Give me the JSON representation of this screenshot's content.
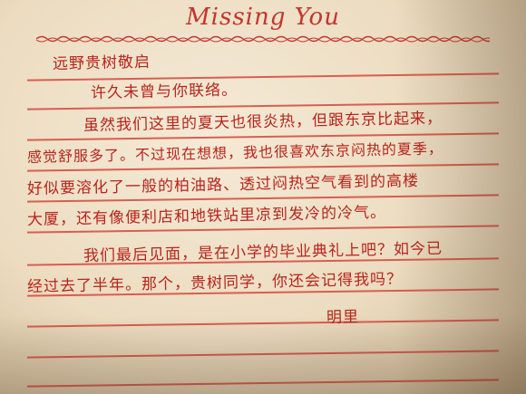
{
  "header": {
    "title": "Missing You"
  },
  "letter": {
    "salutation": "远野贵树敬启",
    "lines": [
      "许久未曾与你联络。",
      "虽然我们这里的夏天也很炎热，但跟东京比起来，",
      "感觉舒服多了。不过现在想想，我也很喜欢东京闷热的夏季，",
      "好似要溶化了一般的柏油路、透过闷热空气看到的高楼",
      "大厦，还有像便利店和地铁站里凉到发冷的冷气。",
      "我们最后见面，是在小学的毕业典礼上吧？如今已",
      "经过去了半年。那个，贵树同学，你还会记得我吗？"
    ],
    "signature": "明里"
  },
  "colors": {
    "ink": "#b8241d",
    "rule": "#d2483c",
    "paper": "#f2e6cf"
  }
}
